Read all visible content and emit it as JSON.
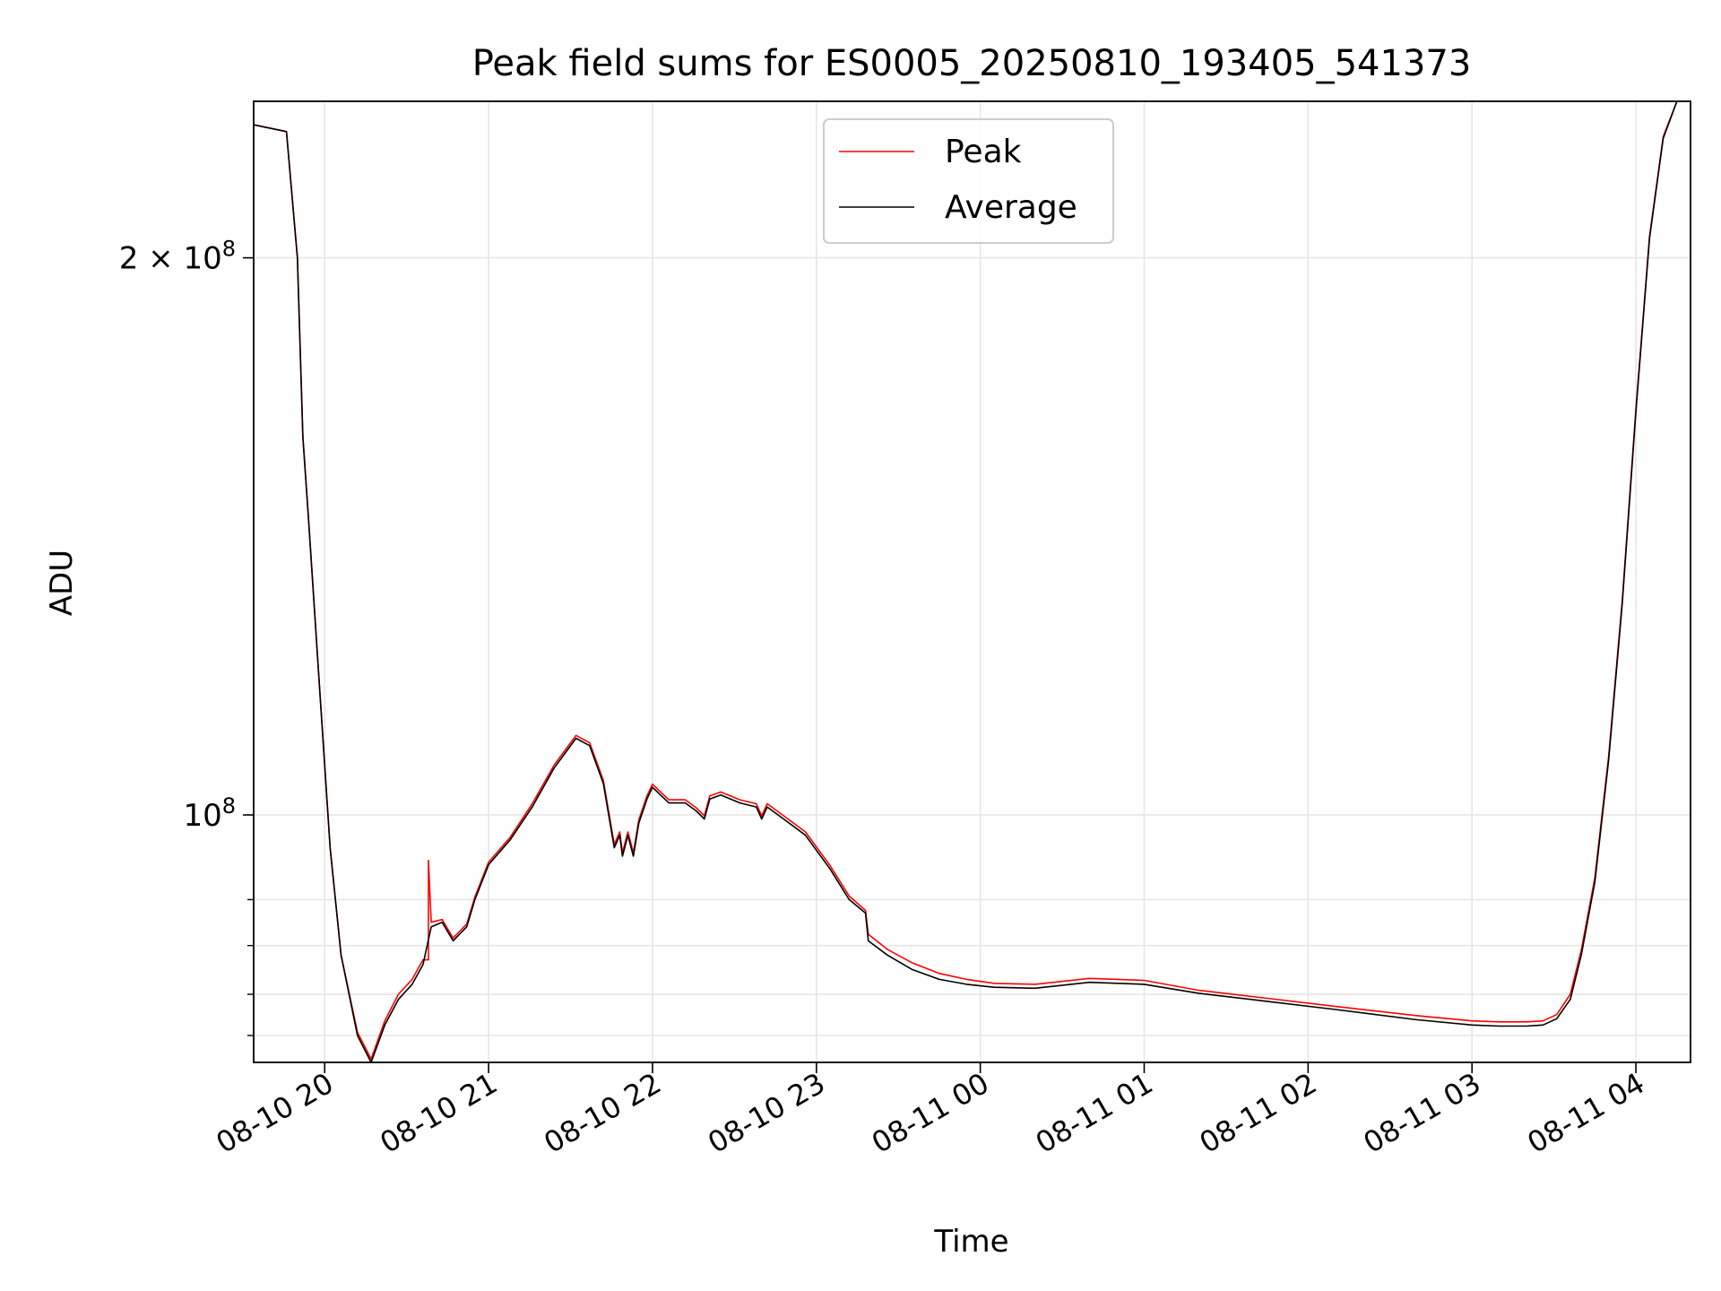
{
  "chart_data": {
    "type": "line",
    "title": "Peak field sums for ES0005_20250810_193405_541373",
    "xlabel": "Time",
    "ylabel": "ADU",
    "yscale": "log",
    "grid": true,
    "legend_position": "upper center",
    "colors": {
      "peak": "#ff0000",
      "average": "#000000",
      "grid": "#e6e6e6"
    },
    "xlim": [
      "2025-08-10 19:34",
      "2025-08-11 04:20"
    ],
    "ylim": [
      73500000,
      243000000
    ],
    "x_ticks": [
      {
        "at": "2025-08-10 20:00",
        "label": "08-10 20"
      },
      {
        "at": "2025-08-10 21:00",
        "label": "08-10 21"
      },
      {
        "at": "2025-08-10 22:00",
        "label": "08-10 22"
      },
      {
        "at": "2025-08-10 23:00",
        "label": "08-10 23"
      },
      {
        "at": "2025-08-11 00:00",
        "label": "08-11 00"
      },
      {
        "at": "2025-08-11 01:00",
        "label": "08-11 01"
      },
      {
        "at": "2025-08-11 02:00",
        "label": "08-11 02"
      },
      {
        "at": "2025-08-11 03:00",
        "label": "08-11 03"
      },
      {
        "at": "2025-08-11 04:00",
        "label": "08-11 04"
      }
    ],
    "y_major_ticks": [
      {
        "value": 100000000,
        "base": "10",
        "exp": "8",
        "mantissa": ""
      },
      {
        "value": 200000000,
        "base": "10",
        "exp": "8",
        "mantissa": "2 × "
      }
    ],
    "y_minor_ticks": [
      76000000,
      80000000,
      85000000,
      90000000
    ],
    "series": [
      {
        "name": "Average",
        "x": [
          "2025-08-10 19:34",
          "2025-08-10 19:46",
          "2025-08-10 19:50",
          "2025-08-10 19:52",
          "2025-08-10 19:54",
          "2025-08-10 19:58",
          "2025-08-10 20:02",
          "2025-08-10 20:06",
          "2025-08-10 20:12",
          "2025-08-10 20:17",
          "2025-08-10 20:22",
          "2025-08-10 20:27",
          "2025-08-10 20:32",
          "2025-08-10 20:36",
          "2025-08-10 20:39",
          "2025-08-10 20:43",
          "2025-08-10 20:47",
          "2025-08-10 20:52",
          "2025-08-10 20:55",
          "2025-08-10 21:00",
          "2025-08-10 21:08",
          "2025-08-10 21:16",
          "2025-08-10 21:24",
          "2025-08-10 21:32",
          "2025-08-10 21:37",
          "2025-08-10 21:42",
          "2025-08-10 21:46",
          "2025-08-10 21:48",
          "2025-08-10 21:49",
          "2025-08-10 21:51",
          "2025-08-10 21:53",
          "2025-08-10 21:55",
          "2025-08-10 21:58",
          "2025-08-10 22:00",
          "2025-08-10 22:06",
          "2025-08-10 22:12",
          "2025-08-10 22:16",
          "2025-08-10 22:19",
          "2025-08-10 22:21",
          "2025-08-10 22:25",
          "2025-08-10 22:32",
          "2025-08-10 22:38",
          "2025-08-10 22:40",
          "2025-08-10 22:42",
          "2025-08-10 22:48",
          "2025-08-10 22:56",
          "2025-08-10 23:05",
          "2025-08-10 23:12",
          "2025-08-10 23:18",
          "2025-08-10 23:19",
          "2025-08-10 23:26",
          "2025-08-10 23:35",
          "2025-08-10 23:45",
          "2025-08-10 23:55",
          "2025-08-11 00:05",
          "2025-08-11 00:20",
          "2025-08-11 00:40",
          "2025-08-11 01:00",
          "2025-08-11 01:20",
          "2025-08-11 01:45",
          "2025-08-11 02:10",
          "2025-08-11 02:40",
          "2025-08-11 03:00",
          "2025-08-11 03:10",
          "2025-08-11 03:20",
          "2025-08-11 03:26",
          "2025-08-11 03:31",
          "2025-08-11 03:36",
          "2025-08-11 03:40",
          "2025-08-11 03:45",
          "2025-08-11 03:50",
          "2025-08-11 03:55",
          "2025-08-11 04:00",
          "2025-08-11 04:05",
          "2025-08-11 04:10",
          "2025-08-11 04:15"
        ],
        "y": [
          236000000,
          234000000,
          200000000,
          160000000,
          145000000,
          118000000,
          96000000,
          84000000,
          76000000,
          73500000,
          77000000,
          79500000,
          81000000,
          83000000,
          87000000,
          87500000,
          85500000,
          87000000,
          90000000,
          94000000,
          97000000,
          101000000,
          106000000,
          110000000,
          109000000,
          104000000,
          96000000,
          97500000,
          95000000,
          97500000,
          95000000,
          99000000,
          102000000,
          103500000,
          101500000,
          101500000,
          100500000,
          99500000,
          102000000,
          102500000,
          101500000,
          101000000,
          99500000,
          101000000,
          99500000,
          97500000,
          93500000,
          90000000,
          88500000,
          85500000,
          84000000,
          82500000,
          81500000,
          81000000,
          80700000,
          80600000,
          81200000,
          81000000,
          80100000,
          79300000,
          78500000,
          77500000,
          77000000,
          76900000,
          76900000,
          77000000,
          77600000,
          79500000,
          84000000,
          92000000,
          107000000,
          130000000,
          165000000,
          205000000,
          232000000,
          243000000
        ]
      },
      {
        "name": "Peak",
        "x": [
          "2025-08-10 19:34",
          "2025-08-10 19:46",
          "2025-08-10 19:50",
          "2025-08-10 19:52",
          "2025-08-10 19:54",
          "2025-08-10 19:58",
          "2025-08-10 20:02",
          "2025-08-10 20:06",
          "2025-08-10 20:12",
          "2025-08-10 20:17",
          "2025-08-10 20:22",
          "2025-08-10 20:27",
          "2025-08-10 20:32",
          "2025-08-10 20:36",
          "2025-08-10 20:38",
          "2025-08-10 20:38",
          "2025-08-10 20:39",
          "2025-08-10 20:43",
          "2025-08-10 20:47",
          "2025-08-10 20:52",
          "2025-08-10 20:55",
          "2025-08-10 21:00",
          "2025-08-10 21:08",
          "2025-08-10 21:16",
          "2025-08-10 21:24",
          "2025-08-10 21:32",
          "2025-08-10 21:37",
          "2025-08-10 21:42",
          "2025-08-10 21:46",
          "2025-08-10 21:48",
          "2025-08-10 21:49",
          "2025-08-10 21:51",
          "2025-08-10 21:53",
          "2025-08-10 21:55",
          "2025-08-10 21:58",
          "2025-08-10 22:00",
          "2025-08-10 22:06",
          "2025-08-10 22:12",
          "2025-08-10 22:16",
          "2025-08-10 22:19",
          "2025-08-10 22:21",
          "2025-08-10 22:25",
          "2025-08-10 22:32",
          "2025-08-10 22:38",
          "2025-08-10 22:40",
          "2025-08-10 22:42",
          "2025-08-10 22:48",
          "2025-08-10 22:56",
          "2025-08-10 23:05",
          "2025-08-10 23:12",
          "2025-08-10 23:18",
          "2025-08-10 23:19",
          "2025-08-10 23:26",
          "2025-08-10 23:35",
          "2025-08-10 23:45",
          "2025-08-10 23:55",
          "2025-08-11 00:05",
          "2025-08-11 00:20",
          "2025-08-11 00:40",
          "2025-08-11 01:00",
          "2025-08-11 01:20",
          "2025-08-11 01:45",
          "2025-08-11 02:10",
          "2025-08-11 02:40",
          "2025-08-11 03:00",
          "2025-08-11 03:10",
          "2025-08-11 03:20",
          "2025-08-11 03:26",
          "2025-08-11 03:31",
          "2025-08-11 03:36",
          "2025-08-11 03:40",
          "2025-08-11 03:45",
          "2025-08-11 03:50",
          "2025-08-11 03:55",
          "2025-08-11 04:00",
          "2025-08-11 04:05",
          "2025-08-11 04:10",
          "2025-08-11 04:15"
        ],
        "y": [
          236000000,
          234000000,
          200000000,
          160000000,
          145000000,
          118000000,
          96000000,
          84000000,
          76300000,
          73800000,
          77400000,
          80000000,
          81500000,
          83500000,
          83500000,
          94500000,
          87500000,
          87800000,
          85800000,
          87300000,
          90300000,
          94300000,
          97300000,
          101400000,
          106400000,
          110400000,
          109400000,
          104400000,
          96400000,
          97900000,
          95400000,
          97900000,
          95400000,
          99400000,
          102400000,
          103900000,
          101900000,
          101900000,
          100900000,
          99900000,
          102400000,
          102900000,
          101900000,
          101400000,
          99900000,
          101400000,
          99900000,
          97900000,
          93900000,
          90400000,
          88800000,
          86200000,
          84600000,
          83200000,
          82100000,
          81500000,
          81100000,
          81000000,
          81600000,
          81400000,
          80400000,
          79600000,
          78800000,
          77900000,
          77400000,
          77300000,
          77300000,
          77400000,
          78000000,
          80000000,
          84500000,
          92500000,
          107500000,
          130500000,
          165500000,
          205500000,
          232500000,
          243000000
        ]
      }
    ]
  }
}
